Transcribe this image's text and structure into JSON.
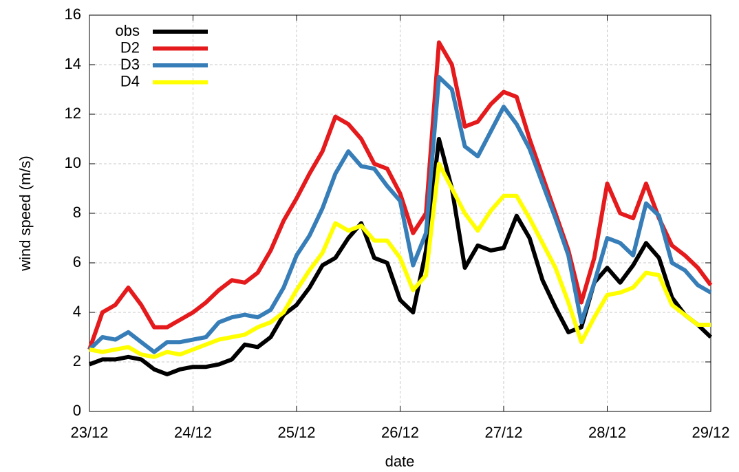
{
  "chart_data": {
    "type": "line",
    "xlabel": "date",
    "ylabel": "wind speed (m/s)",
    "x": [
      0,
      0.125,
      0.25,
      0.375,
      0.5,
      0.625,
      0.75,
      0.875,
      1,
      1.125,
      1.25,
      1.375,
      1.5,
      1.625,
      1.75,
      1.875,
      2,
      2.125,
      2.25,
      2.375,
      2.5,
      2.625,
      2.75,
      2.875,
      3,
      3.125,
      3.25,
      3.375,
      3.5,
      3.625,
      3.75,
      3.875,
      4,
      4.125,
      4.25,
      4.375,
      4.5,
      4.625,
      4.75,
      4.875,
      5,
      5.125,
      5.25,
      5.375,
      5.5,
      5.625,
      5.75,
      5.875,
      6
    ],
    "series": [
      {
        "name": "obs",
        "color": "#000000",
        "values": [
          1.9,
          2.1,
          2.1,
          2.2,
          2.1,
          1.7,
          1.5,
          1.7,
          1.8,
          1.8,
          1.9,
          2.1,
          2.7,
          2.6,
          3.0,
          3.9,
          4.3,
          5.0,
          5.9,
          6.2,
          7.0,
          7.6,
          6.2,
          6.0,
          4.5,
          4.0,
          6.5,
          11.0,
          9.0,
          5.8,
          6.7,
          6.5,
          6.6,
          7.9,
          7.0,
          5.3,
          4.2,
          3.2,
          3.4,
          5.2,
          5.8,
          5.2,
          5.9,
          6.8,
          6.2,
          4.6,
          3.9,
          3.5,
          3.0
        ]
      },
      {
        "name": "D2",
        "color": "#e41a1c",
        "values": [
          2.5,
          4.0,
          4.3,
          5.0,
          4.3,
          3.4,
          3.4,
          3.7,
          4.0,
          4.4,
          4.9,
          5.3,
          5.2,
          5.6,
          6.5,
          7.7,
          8.6,
          9.6,
          10.5,
          11.9,
          11.6,
          11.0,
          10.0,
          9.8,
          8.8,
          7.2,
          8.0,
          14.9,
          14.0,
          11.5,
          11.7,
          12.4,
          12.9,
          12.7,
          11.0,
          9.5,
          8.0,
          6.5,
          4.4,
          6.2,
          9.2,
          8.0,
          7.8,
          9.2,
          7.8,
          6.7,
          6.3,
          5.8,
          5.1
        ]
      },
      {
        "name": "D3",
        "color": "#377eb8",
        "values": [
          2.5,
          3.0,
          2.9,
          3.2,
          2.8,
          2.4,
          2.8,
          2.8,
          2.9,
          3.0,
          3.6,
          3.8,
          3.9,
          3.8,
          4.1,
          5.0,
          6.3,
          7.1,
          8.2,
          9.6,
          10.5,
          9.9,
          9.8,
          9.1,
          8.5,
          5.9,
          7.2,
          13.5,
          13.0,
          10.7,
          10.3,
          11.3,
          12.3,
          11.6,
          10.6,
          9.2,
          7.8,
          6.3,
          3.6,
          5.2,
          7.0,
          6.8,
          6.3,
          8.4,
          7.9,
          6.0,
          5.7,
          5.1,
          4.8
        ]
      },
      {
        "name": "D4",
        "color": "#ffff00",
        "values": [
          2.5,
          2.4,
          2.5,
          2.6,
          2.3,
          2.2,
          2.4,
          2.3,
          2.5,
          2.7,
          2.9,
          3.0,
          3.1,
          3.4,
          3.6,
          4.0,
          4.9,
          5.7,
          6.4,
          7.6,
          7.3,
          7.5,
          6.9,
          6.9,
          6.2,
          4.9,
          5.5,
          10.0,
          9.0,
          8.0,
          7.3,
          8.1,
          8.7,
          8.7,
          7.8,
          6.8,
          5.8,
          4.4,
          2.8,
          3.8,
          4.7,
          4.8,
          5.0,
          5.6,
          5.5,
          4.3,
          3.9,
          3.5,
          3.5
        ]
      }
    ],
    "xlim": [
      0,
      6
    ],
    "xticks": [
      {
        "value": 0,
        "label": "23/12"
      },
      {
        "value": 1,
        "label": "24/12"
      },
      {
        "value": 2,
        "label": "25/12"
      },
      {
        "value": 3,
        "label": "26/12"
      },
      {
        "value": 4,
        "label": "27/12"
      },
      {
        "value": 5,
        "label": "28/12"
      },
      {
        "value": 6,
        "label": "29/12"
      }
    ],
    "ylim": [
      0,
      16
    ],
    "yticks": [
      0,
      2,
      4,
      6,
      8,
      10,
      12,
      14,
      16
    ],
    "grid": true,
    "legend": "top-left"
  }
}
